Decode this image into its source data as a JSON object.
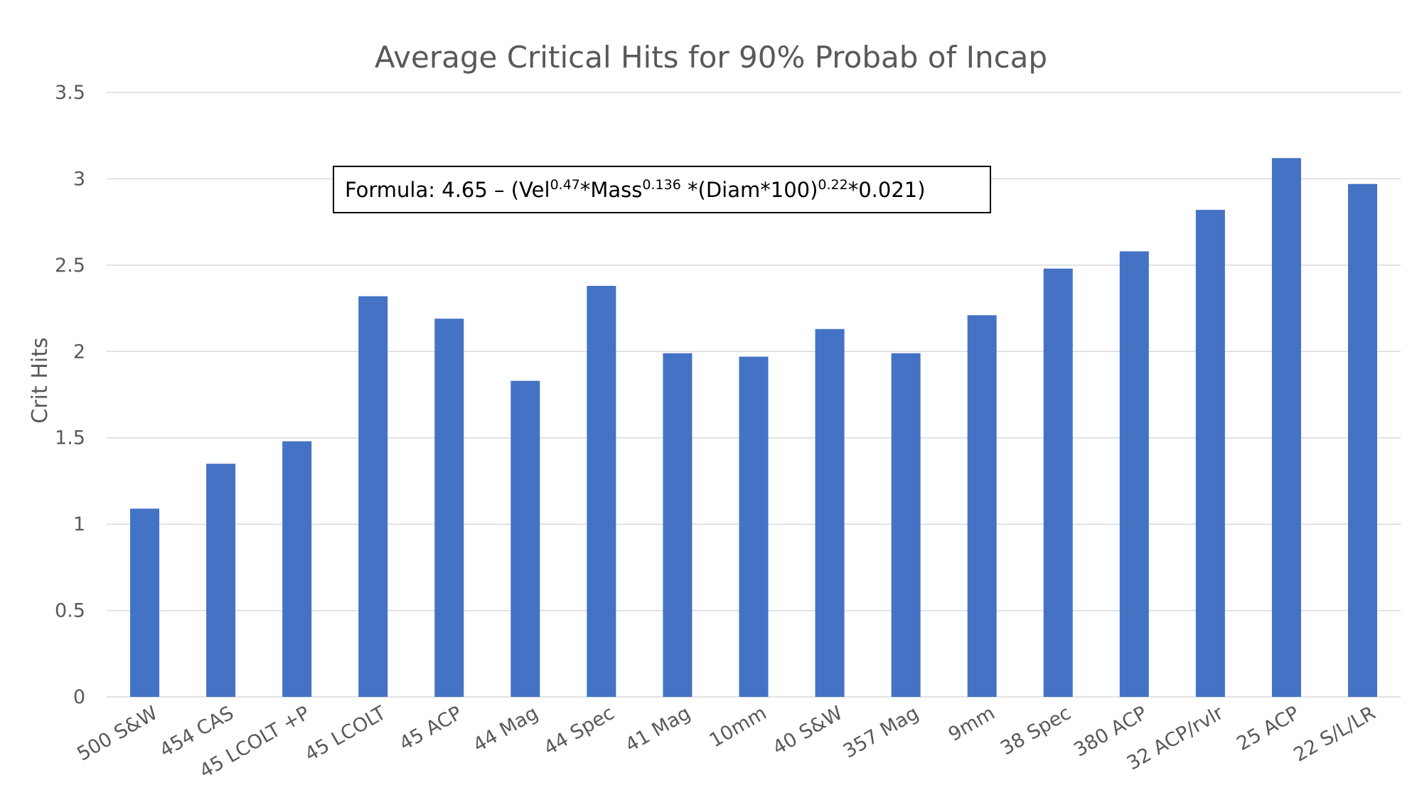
{
  "chart_data": {
    "type": "bar",
    "title": "Average Critical Hits for 90% Probab of Incap",
    "xlabel": "",
    "ylabel": "Crit Hits",
    "ylim": [
      0,
      3.5
    ],
    "yticks": [
      "0",
      "0.5",
      "1",
      "1.5",
      "2",
      "2.5",
      "3",
      "3.5"
    ],
    "grid": true,
    "categories": [
      "500 S&W",
      "454 CAS",
      "45 LCOLT +P",
      "45 LCOLT",
      "45 ACP",
      "44 Mag",
      "44 Spec",
      "41 Mag",
      "10mm",
      "40 S&W",
      "357 Mag",
      "9mm",
      "38 Spec",
      "380 ACP",
      "32 ACP/rvlr",
      "25 ACP",
      "22 S/L/LR"
    ],
    "values": [
      1.09,
      1.35,
      1.48,
      2.32,
      2.19,
      1.83,
      2.38,
      1.99,
      1.97,
      2.13,
      1.99,
      2.21,
      2.48,
      2.58,
      2.82,
      3.12,
      2.97
    ],
    "bar_color": "#4472c4",
    "annotation": {
      "prefix": "Formula: 4.65 – (Vel",
      "sup1": "0.47",
      "mid1": "*Mass",
      "sup2": "0.136",
      "mid2": " *(Diam*100)",
      "sup3": "0.22",
      "suffix": "*0.021)"
    }
  }
}
